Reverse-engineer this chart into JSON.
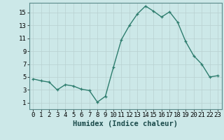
{
  "x": [
    0,
    1,
    2,
    3,
    4,
    5,
    6,
    7,
    8,
    9,
    10,
    11,
    12,
    13,
    14,
    15,
    16,
    17,
    18,
    19,
    20,
    21,
    22,
    23
  ],
  "y": [
    4.7,
    4.4,
    4.2,
    3.0,
    3.8,
    3.6,
    3.1,
    2.9,
    1.1,
    2.0,
    6.5,
    10.8,
    13.0,
    14.8,
    16.0,
    15.2,
    14.3,
    15.1,
    13.5,
    10.5,
    8.3,
    7.0,
    5.0,
    5.2
  ],
  "xlabel": "Humidex (Indice chaleur)",
  "xlim": [
    -0.5,
    23.5
  ],
  "ylim": [
    0,
    16.5
  ],
  "xticks": [
    0,
    1,
    2,
    3,
    4,
    5,
    6,
    7,
    8,
    9,
    10,
    11,
    12,
    13,
    14,
    15,
    16,
    17,
    18,
    19,
    20,
    21,
    22,
    23
  ],
  "yticks": [
    1,
    3,
    5,
    7,
    9,
    11,
    13,
    15
  ],
  "line_color": "#2e7d6e",
  "marker_color": "#2e7d6e",
  "bg_color": "#cce8e8",
  "grid_color": "#b8d0d0",
  "tick_label_fontsize": 6.5,
  "xlabel_fontsize": 7.5
}
